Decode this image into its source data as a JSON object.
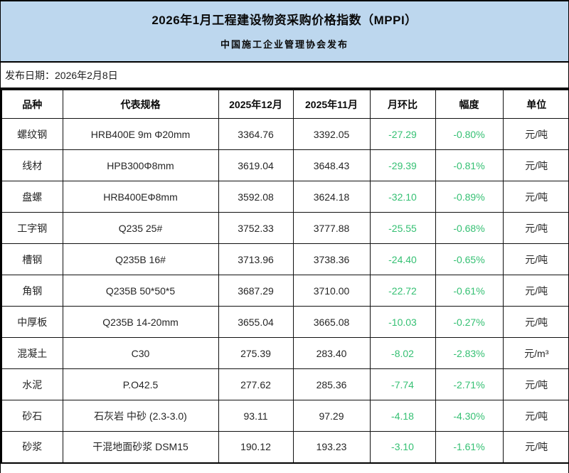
{
  "header": {
    "title": "2026年1月工程建设物资采购价格指数（MPPI）",
    "subtitle": "中国施工企业管理协会发布",
    "publish_date": "发布日期：2026年2月8日"
  },
  "colors": {
    "band_background": "#BDD7EE",
    "negative_value": "#35C073",
    "border": "#111111",
    "text": "#262626"
  },
  "table": {
    "columns": [
      "品种",
      "代表规格",
      "2025年12月",
      "2025年11月",
      "月环比",
      "幅度",
      "单位"
    ],
    "green_column_indexes": [
      4,
      5
    ],
    "rows": [
      [
        "螺纹钢",
        "HRB400E 9m Φ20mm",
        "3364.76",
        "3392.05",
        "-27.29",
        "-0.80%",
        "元/吨"
      ],
      [
        "线材",
        "HPB300Φ8mm",
        "3619.04",
        "3648.43",
        "-29.39",
        "-0.81%",
        "元/吨"
      ],
      [
        "盘螺",
        "HRB400EΦ8mm",
        "3592.08",
        "3624.18",
        "-32.10",
        "-0.89%",
        "元/吨"
      ],
      [
        "工字钢",
        "Q235 25#",
        "3752.33",
        "3777.88",
        "-25.55",
        "-0.68%",
        "元/吨"
      ],
      [
        "槽钢",
        "Q235B 16#",
        "3713.96",
        "3738.36",
        "-24.40",
        "-0.65%",
        "元/吨"
      ],
      [
        "角钢",
        "Q235B 50*50*5",
        "3687.29",
        "3710.00",
        "-22.72",
        "-0.61%",
        "元/吨"
      ],
      [
        "中厚板",
        "Q235B 14-20mm",
        "3655.04",
        "3665.08",
        "-10.03",
        "-0.27%",
        "元/吨"
      ],
      [
        "混凝土",
        "C30",
        "275.39",
        "283.40",
        "-8.02",
        "-2.83%",
        "元/m³"
      ],
      [
        "水泥",
        "P.O42.5",
        "277.62",
        "285.36",
        "-7.74",
        "-2.71%",
        "元/吨"
      ],
      [
        "砂石",
        "石灰岩 中砂 (2.3-3.0)",
        "93.11",
        "97.29",
        "-4.18",
        "-4.30%",
        "元/吨"
      ],
      [
        "砂浆",
        "干混地面砂浆 DSM15",
        "190.12",
        "193.23",
        "-3.10",
        "-1.61%",
        "元/吨"
      ]
    ]
  }
}
